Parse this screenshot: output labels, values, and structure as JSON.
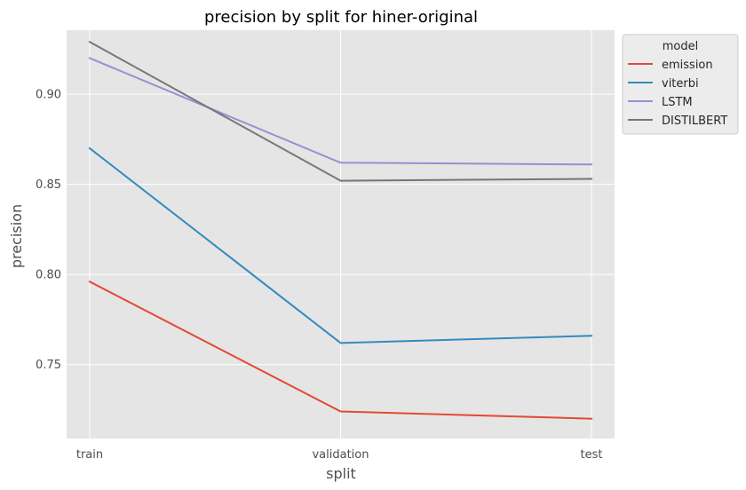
{
  "chart_data": {
    "type": "line",
    "title": "precision by split for hiner-original",
    "xlabel": "split",
    "ylabel": "precision",
    "categories": [
      "train",
      "validation",
      "test"
    ],
    "ylim": [
      0.709,
      0.9355
    ],
    "yticks": [
      0.75,
      0.8,
      0.85,
      0.9
    ],
    "ytick_labels": [
      "0.75",
      "0.80",
      "0.85",
      "0.90"
    ],
    "grid": true,
    "legend": {
      "title": "model",
      "placement": "upper-right-outside"
    },
    "series": [
      {
        "name": "emission",
        "color": "#e24a33",
        "values": [
          0.796,
          0.724,
          0.72
        ]
      },
      {
        "name": "viterbi",
        "color": "#348abd",
        "values": [
          0.87,
          0.762,
          0.766
        ]
      },
      {
        "name": "LSTM",
        "color": "#988ed5",
        "values": [
          0.92,
          0.862,
          0.861
        ]
      },
      {
        "name": "DISTILBERT",
        "color": "#777777",
        "values": [
          0.929,
          0.852,
          0.853
        ]
      }
    ]
  }
}
